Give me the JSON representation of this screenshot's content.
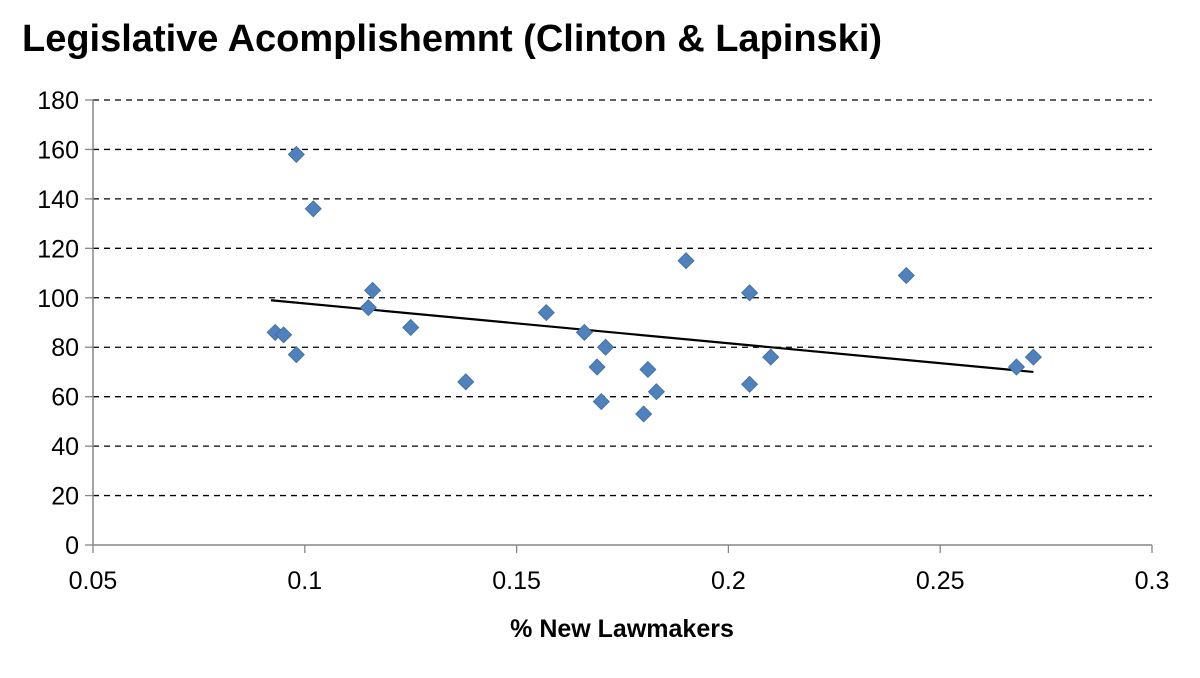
{
  "chart_data": {
    "type": "scatter",
    "title": "Legislative Acomplishemnt (Clinton & Lapinski)",
    "xlabel": "% New Lawmakers",
    "ylabel": "",
    "xlim": [
      0.05,
      0.3
    ],
    "ylim": [
      0,
      180
    ],
    "x_ticks": [
      "0.05",
      "0.1",
      "0.15",
      "0.2",
      "0.25",
      "0.3"
    ],
    "y_ticks": [
      "0",
      "20",
      "40",
      "60",
      "80",
      "100",
      "120",
      "140",
      "160",
      "180"
    ],
    "grid": "horizontal dashed",
    "legend": "none",
    "marker": "diamond",
    "marker_color": "#4F81BD",
    "trendline_color": "#000000",
    "points": [
      {
        "x": 0.093,
        "y": 86
      },
      {
        "x": 0.095,
        "y": 85
      },
      {
        "x": 0.098,
        "y": 158
      },
      {
        "x": 0.098,
        "y": 77
      },
      {
        "x": 0.102,
        "y": 136
      },
      {
        "x": 0.115,
        "y": 96
      },
      {
        "x": 0.116,
        "y": 103
      },
      {
        "x": 0.125,
        "y": 88
      },
      {
        "x": 0.138,
        "y": 66
      },
      {
        "x": 0.157,
        "y": 94
      },
      {
        "x": 0.166,
        "y": 86
      },
      {
        "x": 0.169,
        "y": 72
      },
      {
        "x": 0.17,
        "y": 58
      },
      {
        "x": 0.171,
        "y": 80
      },
      {
        "x": 0.18,
        "y": 53
      },
      {
        "x": 0.181,
        "y": 71
      },
      {
        "x": 0.183,
        "y": 62
      },
      {
        "x": 0.19,
        "y": 115
      },
      {
        "x": 0.205,
        "y": 102
      },
      {
        "x": 0.205,
        "y": 65
      },
      {
        "x": 0.21,
        "y": 76
      },
      {
        "x": 0.242,
        "y": 109
      },
      {
        "x": 0.268,
        "y": 72
      },
      {
        "x": 0.272,
        "y": 76
      }
    ],
    "trendline": [
      {
        "x": 0.092,
        "y": 99
      },
      {
        "x": 0.272,
        "y": 70
      }
    ]
  }
}
